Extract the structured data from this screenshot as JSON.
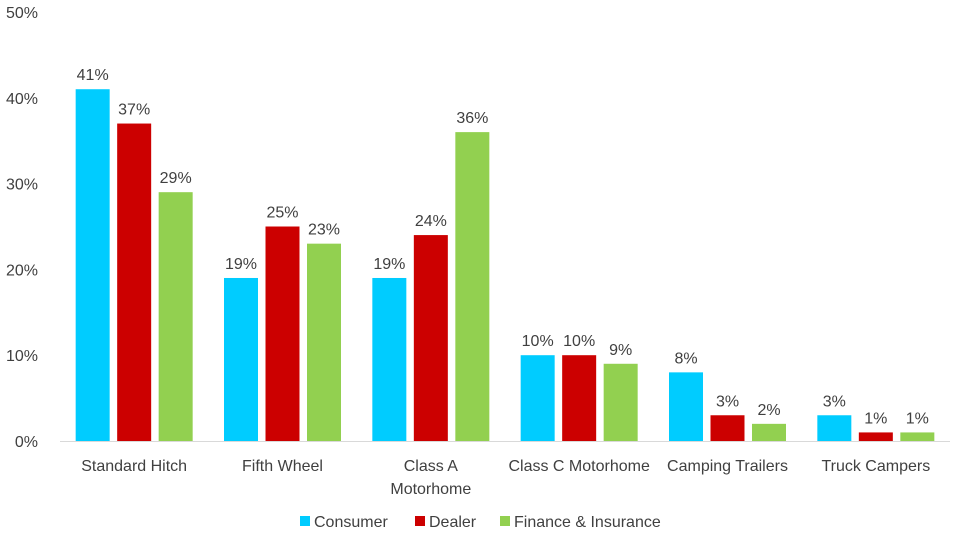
{
  "chart_data": {
    "type": "bar",
    "title": "",
    "xlabel": "",
    "ylabel": "",
    "ylim": [
      0,
      50
    ],
    "yticks": [
      "0%",
      "10%",
      "20%",
      "30%",
      "40%",
      "50%"
    ],
    "ytick_values": [
      0,
      10,
      20,
      30,
      40,
      50
    ],
    "categories": [
      "Standard Hitch",
      "Fifth Wheel",
      "Class A Motorhome",
      "Class C Motorhome",
      "Camping Trailers",
      "Truck Campers"
    ],
    "category_lines": [
      [
        "Standard Hitch"
      ],
      [
        "Fifth Wheel"
      ],
      [
        "Class A",
        "Motorhome"
      ],
      [
        "Class C Motorhome"
      ],
      [
        "Camping Trailers"
      ],
      [
        "Truck Campers"
      ]
    ],
    "series": [
      {
        "name": "Consumer",
        "color": "#00CCFF",
        "values": [
          41,
          19,
          19,
          10,
          8,
          3
        ],
        "labels": [
          "41%",
          "19%",
          "19%",
          "10%",
          "8%",
          "3%"
        ]
      },
      {
        "name": "Dealer",
        "color": "#CC0000",
        "values": [
          37,
          25,
          24,
          10,
          3,
          1
        ],
        "labels": [
          "37%",
          "25%",
          "24%",
          "10%",
          "3%",
          "1%"
        ]
      },
      {
        "name": "Finance & Insurance",
        "color": "#92D050",
        "values": [
          29,
          23,
          36,
          9,
          2,
          1
        ],
        "labels": [
          "29%",
          "23%",
          "36%",
          "9%",
          "2%",
          "1%"
        ]
      }
    ],
    "grid": false,
    "legend_position": "bottom"
  }
}
